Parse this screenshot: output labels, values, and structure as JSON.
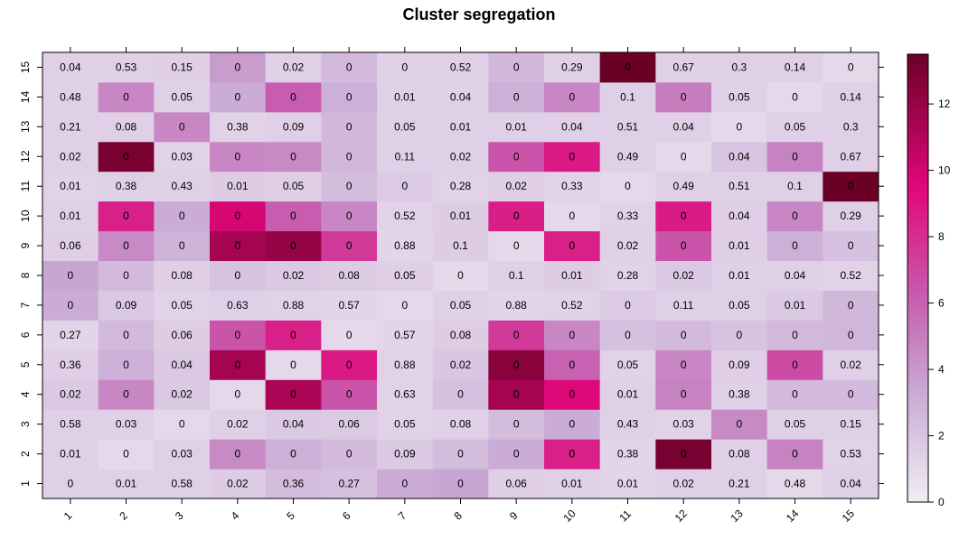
{
  "chart_data": {
    "type": "heatmap",
    "title": "Cluster segregation",
    "xlabel": "",
    "ylabel": "",
    "x_categories": [
      "1",
      "2",
      "3",
      "4",
      "5",
      "6",
      "7",
      "8",
      "9",
      "10",
      "11",
      "12",
      "13",
      "14",
      "15"
    ],
    "y_categories": [
      "1",
      "2",
      "3",
      "4",
      "5",
      "6",
      "7",
      "8",
      "9",
      "10",
      "11",
      "12",
      "13",
      "14",
      "15"
    ],
    "labels": [
      [
        "0",
        "0.01",
        "0.58",
        "0.02",
        "0.36",
        "0.27",
        "0",
        "0",
        "0.06",
        "0.01",
        "0.01",
        "0.02",
        "0.21",
        "0.48",
        "0.04"
      ],
      [
        "0.01",
        "0",
        "0.03",
        "0",
        "0",
        "0",
        "0.09",
        "0",
        "0",
        "0",
        "0.38",
        "0",
        "0.08",
        "0",
        "0.53"
      ],
      [
        "0.58",
        "0.03",
        "0",
        "0.02",
        "0.04",
        "0.06",
        "0.05",
        "0.08",
        "0",
        "0",
        "0.43",
        "0.03",
        "0",
        "0.05",
        "0.15"
      ],
      [
        "0.02",
        "0",
        "0.02",
        "0",
        "0",
        "0",
        "0.63",
        "0",
        "0",
        "0",
        "0.01",
        "0",
        "0.38",
        "0",
        "0"
      ],
      [
        "0.36",
        "0",
        "0.04",
        "0",
        "0",
        "0",
        "0.88",
        "0.02",
        "0",
        "0",
        "0.05",
        "0",
        "0.09",
        "0",
        "0.02"
      ],
      [
        "0.27",
        "0",
        "0.06",
        "0",
        "0",
        "0",
        "0.57",
        "0.08",
        "0",
        "0",
        "0",
        "0",
        "0",
        "0",
        "0"
      ],
      [
        "0",
        "0.09",
        "0.05",
        "0.63",
        "0.88",
        "0.57",
        "0",
        "0.05",
        "0.88",
        "0.52",
        "0",
        "0.11",
        "0.05",
        "0.01",
        "0"
      ],
      [
        "0",
        "0",
        "0.08",
        "0",
        "0.02",
        "0.08",
        "0.05",
        "0",
        "0.1",
        "0.01",
        "0.28",
        "0.02",
        "0.01",
        "0.04",
        "0.52"
      ],
      [
        "0.06",
        "0",
        "0",
        "0",
        "0",
        "0",
        "0.88",
        "0.1",
        "0",
        "0",
        "0.02",
        "0",
        "0.01",
        "0",
        "0"
      ],
      [
        "0.01",
        "0",
        "0",
        "0",
        "0",
        "0",
        "0.52",
        "0.01",
        "0",
        "0",
        "0.33",
        "0",
        "0.04",
        "0",
        "0.29"
      ],
      [
        "0.01",
        "0.38",
        "0.43",
        "0.01",
        "0.05",
        "0",
        "0",
        "0.28",
        "0.02",
        "0.33",
        "0",
        "0.49",
        "0.51",
        "0.1",
        "0"
      ],
      [
        "0.02",
        "0",
        "0.03",
        "0",
        "0",
        "0",
        "0.11",
        "0.02",
        "0",
        "0",
        "0.49",
        "0",
        "0.04",
        "0",
        "0.67"
      ],
      [
        "0.21",
        "0.08",
        "0",
        "0.38",
        "0.09",
        "0",
        "0.05",
        "0.01",
        "0.01",
        "0.04",
        "0.51",
        "0.04",
        "0",
        "0.05",
        "0.3"
      ],
      [
        "0.48",
        "0",
        "0.05",
        "0",
        "0",
        "0",
        "0.01",
        "0.04",
        "0",
        "0",
        "0.1",
        "0",
        "0.05",
        "0",
        "0.14"
      ],
      [
        "0.04",
        "0.53",
        "0.15",
        "0",
        "0.02",
        "0",
        "0",
        "0.52",
        "0",
        "0.29",
        "0",
        "0.67",
        "0.3",
        "0.14",
        "0"
      ]
    ],
    "color_values": [
      [
        1.4,
        1.4,
        1.4,
        1.6,
        2.4,
        2.2,
        3.2,
        3.5,
        1.5,
        1.4,
        1.2,
        1.4,
        1.4,
        1.0,
        1.4
      ],
      [
        1.4,
        1.0,
        1.4,
        4.5,
        3.0,
        2.5,
        1.8,
        2.4,
        3.2,
        8.5,
        1.2,
        13.0,
        1.4,
        4.8,
        1.3
      ],
      [
        1.4,
        1.4,
        1.0,
        1.4,
        1.8,
        1.7,
        1.3,
        1.4,
        2.4,
        3.2,
        1.4,
        1.3,
        4.5,
        1.4,
        1.4
      ],
      [
        1.8,
        4.6,
        1.8,
        1.0,
        11.2,
        6.5,
        1.3,
        2.2,
        11.5,
        9.5,
        1.4,
        4.8,
        1.4,
        2.5,
        2.5
      ],
      [
        1.5,
        3.0,
        1.8,
        11.5,
        1.0,
        8.8,
        1.3,
        1.9,
        12.5,
        6.0,
        1.3,
        4.6,
        1.5,
        6.8,
        1.4
      ],
      [
        1.2,
        2.5,
        1.6,
        6.5,
        8.5,
        1.0,
        1.2,
        1.6,
        7.5,
        4.6,
        2.2,
        2.5,
        2.1,
        2.5,
        2.7
      ],
      [
        3.2,
        1.8,
        1.3,
        1.4,
        1.3,
        1.2,
        1.0,
        1.4,
        1.2,
        1.3,
        1.7,
        1.4,
        1.4,
        1.8,
        2.6
      ],
      [
        3.5,
        2.5,
        1.5,
        2.1,
        1.8,
        1.6,
        1.5,
        1.0,
        1.4,
        1.6,
        1.3,
        1.8,
        1.4,
        1.4,
        1.3
      ],
      [
        1.5,
        4.5,
        2.8,
        11.5,
        12.0,
        7.5,
        1.2,
        1.6,
        1.0,
        8.5,
        1.4,
        6.5,
        1.5,
        3.0,
        2.2
      ],
      [
        1.4,
        8.5,
        3.2,
        9.8,
        6.2,
        4.6,
        1.3,
        1.6,
        8.6,
        1.0,
        1.3,
        8.7,
        1.5,
        4.6,
        1.4
      ],
      [
        1.3,
        1.4,
        1.4,
        1.6,
        1.5,
        2.4,
        1.7,
        1.3,
        1.5,
        1.3,
        1.0,
        1.4,
        1.4,
        1.4,
        13.5
      ],
      [
        1.4,
        13.0,
        1.3,
        4.6,
        4.5,
        2.6,
        1.4,
        1.4,
        6.5,
        8.8,
        1.4,
        1.0,
        2.0,
        4.8,
        1.4
      ],
      [
        1.4,
        1.4,
        4.6,
        1.3,
        1.4,
        2.6,
        1.4,
        1.4,
        1.4,
        1.4,
        1.4,
        1.4,
        1.0,
        1.4,
        1.4
      ],
      [
        1.4,
        4.6,
        1.4,
        3.2,
        6.2,
        3.0,
        1.4,
        1.4,
        3.0,
        4.6,
        1.4,
        5.0,
        1.4,
        1.0,
        1.4
      ],
      [
        1.4,
        1.4,
        1.5,
        3.8,
        1.4,
        2.5,
        1.4,
        1.4,
        2.6,
        1.4,
        13.5,
        1.4,
        1.4,
        1.4,
        1.0
      ]
    ],
    "colorbar": {
      "min": 0,
      "max": 13.5,
      "ticks": [
        0,
        2,
        4,
        6,
        8,
        10,
        12
      ]
    },
    "colors": {
      "scale_low": "#f1ecf4",
      "scale_mid_low": "#c8a9d4",
      "scale_mid": "#c75fb0",
      "scale_mid_high": "#e0087a",
      "scale_high": "#6b0027",
      "axis": "#000000"
    },
    "grid": false,
    "legend_position": "right"
  }
}
